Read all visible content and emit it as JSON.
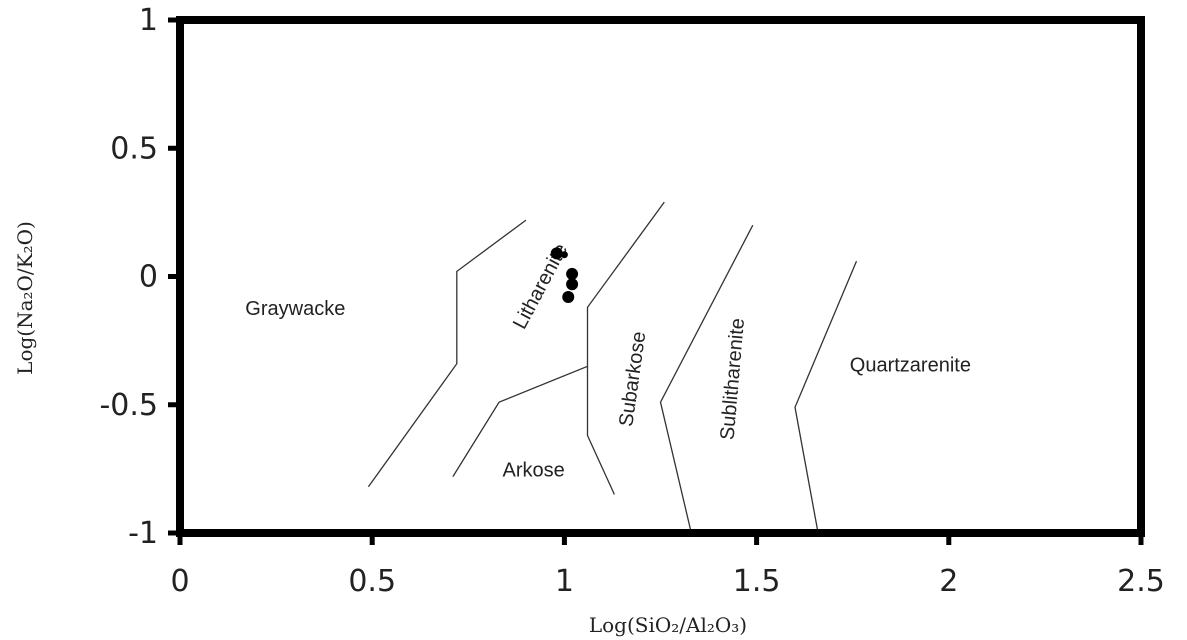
{
  "chart_data": {
    "type": "scatter",
    "title": "",
    "xlabel": "Log(SiO₂/Al₂O₃)",
    "ylabel": "Log(Na₂O/K₂O)",
    "xlim": [
      0,
      2.5
    ],
    "ylim": [
      -1,
      1
    ],
    "x_ticks": [
      0,
      0.5,
      1,
      1.5,
      2,
      2.5
    ],
    "x_tick_labels": [
      "0",
      "0.5",
      "1",
      "1.5",
      "2",
      "2.5"
    ],
    "y_ticks": [
      1,
      0.5,
      0,
      -0.5,
      -1
    ],
    "y_tick_labels": [
      "1",
      "0.5",
      "0",
      "-0.5",
      "-1"
    ],
    "grid": false,
    "series": [
      {
        "points": [
          {
            "x": 0.98,
            "y": 0.09
          },
          {
            "x": 1.0,
            "y": 0.085
          },
          {
            "x": 1.02,
            "y": 0.01
          },
          {
            "x": 1.02,
            "y": -0.03
          },
          {
            "x": 1.01,
            "y": -0.08
          }
        ],
        "color": "#000000"
      }
    ],
    "boundaries": [
      [
        [
          0.49,
          -0.82
        ],
        [
          0.72,
          -0.34
        ],
        [
          0.72,
          0.02
        ],
        [
          0.9,
          0.22
        ]
      ],
      [
        [
          0.71,
          -0.78
        ],
        [
          0.83,
          -0.49
        ],
        [
          1.06,
          -0.35
        ],
        [
          1.06,
          -0.12
        ],
        [
          1.26,
          0.29
        ]
      ],
      [
        [
          1.06,
          -0.35
        ],
        [
          1.06,
          -0.62
        ],
        [
          1.13,
          -0.85
        ]
      ],
      [
        [
          1.33,
          -1.0
        ],
        [
          1.25,
          -0.49
        ],
        [
          1.49,
          0.2
        ]
      ],
      [
        [
          1.66,
          -1.0
        ],
        [
          1.6,
          -0.51
        ],
        [
          1.76,
          0.06
        ]
      ]
    ],
    "regions": [
      {
        "label": "Graywacke",
        "x": 0.3,
        "y": -0.13,
        "rotate": 0
      },
      {
        "label": "Litharenite",
        "x": 0.94,
        "y": -0.04,
        "rotate": -62
      },
      {
        "label": "Arkose",
        "x": 0.92,
        "y": -0.76,
        "rotate": 0
      },
      {
        "label": "Subarkose",
        "x": 1.18,
        "y": -0.4,
        "rotate": -82
      },
      {
        "label": "Sublitharenite",
        "x": 1.44,
        "y": -0.4,
        "rotate": -85
      },
      {
        "label": "Quartzarenite",
        "x": 1.9,
        "y": -0.35,
        "rotate": 0
      }
    ]
  }
}
